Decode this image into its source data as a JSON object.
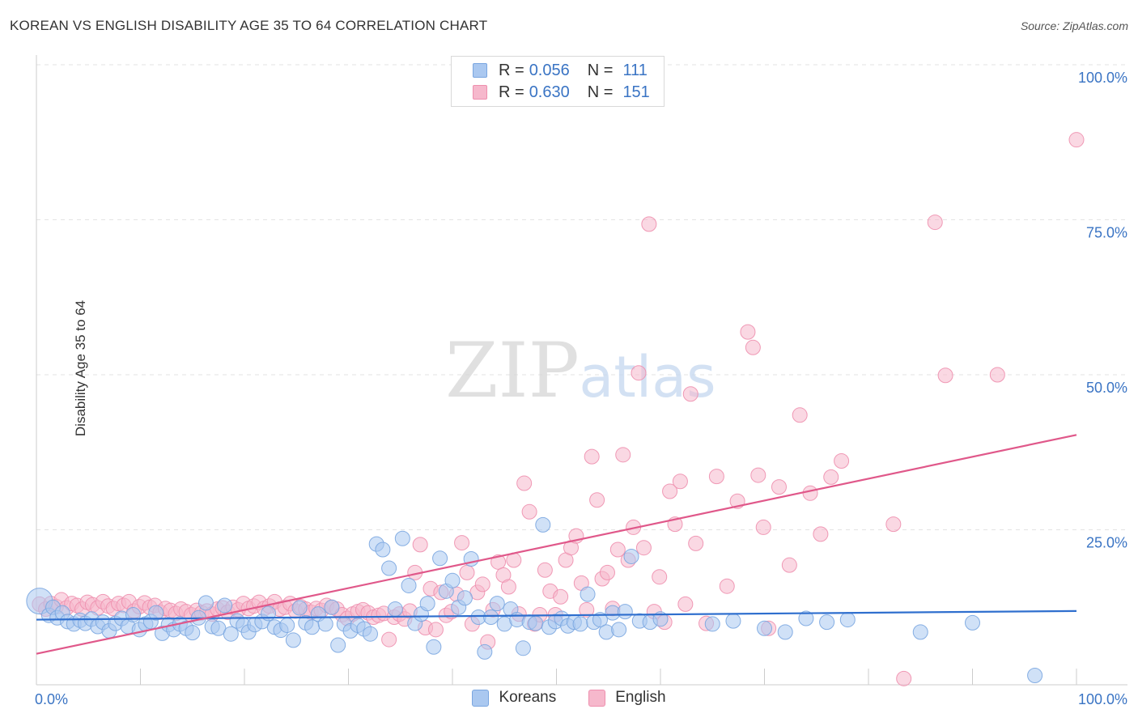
{
  "header": {
    "title": "KOREAN VS ENGLISH DISABILITY AGE 35 TO 64 CORRELATION CHART",
    "source": "Source: ZipAtlas.com"
  },
  "watermark": {
    "zip": "ZIP",
    "atlas": "atlas"
  },
  "legend": {
    "koreans": {
      "r_label": "R =",
      "r_value": "0.056",
      "n_label": "N =",
      "n_value": "111"
    },
    "english": {
      "r_label": "R =",
      "r_value": "0.630",
      "n_label": "N =",
      "n_value": "151"
    }
  },
  "bottom_legend": {
    "koreans": "Koreans",
    "english": "English"
  },
  "colors": {
    "koreans_fill": "#aac8f0",
    "koreans_stroke": "#7aa6e0",
    "koreans_line": "#2f6fce",
    "english_fill": "#f6b8cc",
    "english_stroke": "#ee8fae",
    "english_line": "#e0588a",
    "axis_text": "#3a74c4",
    "grid": "#e3e3e3"
  },
  "chart_data": {
    "type": "scatter",
    "title": "KOREAN VS ENGLISH DISABILITY AGE 35 TO 64 CORRELATION CHART",
    "xlabel": "",
    "ylabel": "Disability Age 35 to 64",
    "xlim": [
      0,
      100
    ],
    "ylim": [
      0,
      100
    ],
    "x_tick_labels": [
      "0.0%",
      "100.0%"
    ],
    "y_tick_labels": [
      "25.0%",
      "50.0%",
      "75.0%",
      "100.0%"
    ],
    "y_ticks": [
      25,
      50,
      75,
      100
    ],
    "grid": true,
    "legend_position": "top-center",
    "series": [
      {
        "name": "Koreans",
        "r": 0.056,
        "n": 111,
        "trend": {
          "x": [
            0,
            100
          ],
          "y": [
            10.5,
            11.9
          ]
        },
        "points": [
          [
            0.3,
            13.5
          ],
          [
            1.2,
            11.2
          ],
          [
            1.6,
            12.5
          ],
          [
            2.0,
            10.8
          ],
          [
            2.5,
            11.6
          ],
          [
            3.0,
            10.2
          ],
          [
            3.6,
            9.8
          ],
          [
            4.2,
            10.4
          ],
          [
            4.7,
            9.9
          ],
          [
            5.3,
            10.6
          ],
          [
            5.9,
            9.4
          ],
          [
            6.4,
            10.1
          ],
          [
            7.0,
            8.7
          ],
          [
            7.6,
            9.9
          ],
          [
            8.2,
            10.7
          ],
          [
            8.8,
            9.4
          ],
          [
            9.3,
            11.3
          ],
          [
            9.9,
            8.9
          ],
          [
            10.5,
            9.8
          ],
          [
            11.0,
            10.2
          ],
          [
            11.5,
            11.6
          ],
          [
            12.1,
            8.3
          ],
          [
            12.7,
            9.7
          ],
          [
            13.2,
            8.9
          ],
          [
            13.8,
            9.8
          ],
          [
            14.4,
            9.1
          ],
          [
            15.0,
            8.4
          ],
          [
            15.6,
            10.8
          ],
          [
            16.3,
            13.2
          ],
          [
            16.9,
            9.4
          ],
          [
            17.5,
            9.1
          ],
          [
            18.1,
            12.8
          ],
          [
            18.7,
            8.2
          ],
          [
            19.3,
            10.3
          ],
          [
            19.9,
            9.6
          ],
          [
            20.4,
            8.5
          ],
          [
            21.0,
            9.7
          ],
          [
            21.7,
            10.2
          ],
          [
            22.3,
            11.5
          ],
          [
            22.9,
            9.3
          ],
          [
            23.5,
            8.8
          ],
          [
            24.1,
            9.6
          ],
          [
            24.7,
            7.2
          ],
          [
            25.3,
            12.4
          ],
          [
            25.9,
            10.0
          ],
          [
            26.5,
            9.3
          ],
          [
            27.1,
            11.4
          ],
          [
            27.8,
            9.8
          ],
          [
            28.4,
            12.5
          ],
          [
            29.0,
            6.4
          ],
          [
            29.6,
            9.8
          ],
          [
            30.2,
            8.7
          ],
          [
            30.9,
            9.6
          ],
          [
            31.5,
            9.0
          ],
          [
            32.1,
            8.2
          ],
          [
            32.7,
            22.7
          ],
          [
            33.3,
            21.8
          ],
          [
            33.9,
            18.8
          ],
          [
            34.5,
            12.2
          ],
          [
            35.2,
            23.6
          ],
          [
            35.8,
            16.0
          ],
          [
            36.4,
            9.9
          ],
          [
            37.0,
            11.4
          ],
          [
            37.6,
            13.1
          ],
          [
            38.2,
            6.1
          ],
          [
            38.8,
            20.4
          ],
          [
            39.4,
            15.1
          ],
          [
            40.0,
            16.8
          ],
          [
            40.6,
            12.5
          ],
          [
            41.2,
            14.0
          ],
          [
            41.8,
            20.3
          ],
          [
            42.5,
            10.9
          ],
          [
            43.1,
            5.3
          ],
          [
            43.7,
            10.9
          ],
          [
            44.3,
            13.1
          ],
          [
            45.0,
            9.8
          ],
          [
            45.6,
            12.2
          ],
          [
            46.2,
            10.5
          ],
          [
            46.8,
            5.9
          ],
          [
            47.4,
            10.1
          ],
          [
            48.0,
            9.9
          ],
          [
            48.7,
            25.8
          ],
          [
            49.3,
            9.3
          ],
          [
            49.9,
            10.2
          ],
          [
            50.5,
            10.7
          ],
          [
            51.1,
            9.5
          ],
          [
            51.7,
            10.1
          ],
          [
            52.3,
            9.8
          ],
          [
            53.0,
            14.6
          ],
          [
            53.6,
            10.1
          ],
          [
            54.2,
            10.5
          ],
          [
            54.8,
            8.5
          ],
          [
            55.4,
            11.6
          ],
          [
            56.0,
            8.9
          ],
          [
            56.6,
            11.8
          ],
          [
            57.2,
            20.7
          ],
          [
            58.0,
            10.3
          ],
          [
            59.0,
            10.1
          ],
          [
            60.0,
            10.6
          ],
          [
            65.0,
            9.8
          ],
          [
            67.0,
            10.3
          ],
          [
            70.0,
            9.1
          ],
          [
            72.0,
            8.5
          ],
          [
            74.0,
            10.7
          ],
          [
            76.0,
            10.1
          ],
          [
            78.0,
            10.5
          ],
          [
            85.0,
            8.5
          ],
          [
            90.0,
            10.0
          ],
          [
            96.0,
            1.5
          ]
        ]
      },
      {
        "name": "English",
        "r": 0.63,
        "n": 151,
        "trend": {
          "x": [
            0,
            100
          ],
          "y": [
            5.0,
            40.3
          ]
        },
        "points": [
          [
            0.3,
            13.0
          ],
          [
            0.9,
            12.2
          ],
          [
            1.4,
            13.1
          ],
          [
            1.9,
            12.6
          ],
          [
            2.4,
            13.7
          ],
          [
            2.9,
            12.4
          ],
          [
            3.4,
            13.1
          ],
          [
            3.9,
            12.8
          ],
          [
            4.4,
            12.2
          ],
          [
            4.9,
            13.3
          ],
          [
            5.4,
            12.9
          ],
          [
            5.9,
            12.4
          ],
          [
            6.4,
            13.4
          ],
          [
            6.9,
            12.7
          ],
          [
            7.4,
            12.3
          ],
          [
            7.9,
            13.1
          ],
          [
            8.4,
            12.8
          ],
          [
            8.9,
            13.4
          ],
          [
            9.4,
            11.9
          ],
          [
            9.9,
            12.6
          ],
          [
            10.4,
            13.2
          ],
          [
            10.9,
            12.5
          ],
          [
            11.4,
            12.8
          ],
          [
            11.9,
            11.7
          ],
          [
            12.4,
            12.3
          ],
          [
            12.9,
            12.0
          ],
          [
            13.4,
            11.5
          ],
          [
            13.9,
            12.2
          ],
          [
            14.4,
            11.8
          ],
          [
            14.9,
            11.3
          ],
          [
            15.4,
            12.0
          ],
          [
            15.9,
            11.6
          ],
          [
            16.4,
            11.9
          ],
          [
            16.9,
            11.4
          ],
          [
            17.4,
            12.2
          ],
          [
            17.9,
            12.4
          ],
          [
            18.4,
            11.7
          ],
          [
            18.9,
            12.5
          ],
          [
            19.4,
            12.1
          ],
          [
            19.9,
            13.1
          ],
          [
            20.4,
            12.3
          ],
          [
            20.9,
            12.7
          ],
          [
            21.4,
            13.3
          ],
          [
            21.9,
            12.3
          ],
          [
            22.4,
            12.7
          ],
          [
            22.9,
            13.4
          ],
          [
            23.4,
            12.2
          ],
          [
            23.9,
            12.5
          ],
          [
            24.4,
            13.1
          ],
          [
            24.9,
            11.9
          ],
          [
            25.4,
            12.6
          ],
          [
            25.9,
            12.2
          ],
          [
            26.4,
            11.7
          ],
          [
            26.9,
            12.3
          ],
          [
            27.4,
            12.0
          ],
          [
            27.9,
            12.8
          ],
          [
            28.4,
            12.5
          ],
          [
            28.9,
            12.2
          ],
          [
            29.4,
            11.3
          ],
          [
            29.9,
            10.7
          ],
          [
            30.4,
            11.4
          ],
          [
            30.9,
            11.8
          ],
          [
            31.4,
            12.1
          ],
          [
            31.9,
            11.6
          ],
          [
            32.4,
            10.9
          ],
          [
            32.9,
            11.2
          ],
          [
            33.4,
            11.5
          ],
          [
            33.9,
            7.3
          ],
          [
            34.4,
            10.9
          ],
          [
            34.9,
            11.4
          ],
          [
            35.4,
            10.6
          ],
          [
            35.9,
            11.9
          ],
          [
            36.4,
            18.1
          ],
          [
            36.9,
            22.6
          ],
          [
            37.4,
            9.2
          ],
          [
            37.9,
            15.5
          ],
          [
            38.4,
            8.9
          ],
          [
            38.9,
            14.9
          ],
          [
            39.4,
            11.2
          ],
          [
            39.9,
            11.8
          ],
          [
            40.4,
            14.6
          ],
          [
            40.9,
            22.9
          ],
          [
            41.4,
            18.1
          ],
          [
            41.9,
            9.8
          ],
          [
            42.4,
            14.9
          ],
          [
            42.9,
            16.2
          ],
          [
            43.4,
            6.9
          ],
          [
            43.9,
            12.1
          ],
          [
            44.4,
            19.8
          ],
          [
            44.9,
            17.7
          ],
          [
            45.4,
            15.8
          ],
          [
            45.9,
            20.1
          ],
          [
            46.4,
            11.4
          ],
          [
            46.9,
            32.5
          ],
          [
            47.4,
            27.9
          ],
          [
            47.9,
            9.8
          ],
          [
            48.4,
            11.3
          ],
          [
            48.9,
            18.5
          ],
          [
            49.4,
            15.1
          ],
          [
            49.9,
            11.3
          ],
          [
            50.4,
            14.2
          ],
          [
            50.9,
            20.1
          ],
          [
            51.4,
            22.1
          ],
          [
            51.9,
            24.0
          ],
          [
            52.4,
            16.4
          ],
          [
            52.9,
            12.1
          ],
          [
            53.4,
            36.8
          ],
          [
            53.9,
            29.8
          ],
          [
            54.4,
            17.1
          ],
          [
            54.9,
            18.1
          ],
          [
            55.4,
            12.3
          ],
          [
            55.9,
            21.8
          ],
          [
            56.4,
            37.1
          ],
          [
            56.9,
            20.1
          ],
          [
            57.4,
            25.4
          ],
          [
            57.9,
            50.3
          ],
          [
            58.4,
            22.1
          ],
          [
            58.9,
            74.3
          ],
          [
            59.4,
            11.8
          ],
          [
            59.9,
            17.4
          ],
          [
            60.4,
            10.1
          ],
          [
            60.9,
            31.2
          ],
          [
            61.4,
            25.9
          ],
          [
            61.9,
            32.8
          ],
          [
            62.4,
            13.0
          ],
          [
            62.9,
            46.9
          ],
          [
            63.4,
            22.8
          ],
          [
            64.4,
            9.9
          ],
          [
            65.4,
            33.6
          ],
          [
            66.4,
            15.9
          ],
          [
            67.4,
            29.6
          ],
          [
            68.4,
            56.9
          ],
          [
            68.9,
            54.4
          ],
          [
            69.4,
            33.8
          ],
          [
            69.9,
            25.4
          ],
          [
            70.4,
            9.1
          ],
          [
            71.4,
            31.9
          ],
          [
            72.4,
            19.3
          ],
          [
            73.4,
            43.5
          ],
          [
            74.4,
            30.9
          ],
          [
            75.4,
            24.3
          ],
          [
            76.4,
            33.5
          ],
          [
            77.4,
            36.1
          ],
          [
            82.4,
            25.9
          ],
          [
            83.4,
            1.0
          ],
          [
            86.4,
            74.6
          ],
          [
            87.4,
            49.9
          ],
          [
            92.4,
            50.0
          ],
          [
            100.0,
            87.9
          ]
        ]
      }
    ]
  }
}
